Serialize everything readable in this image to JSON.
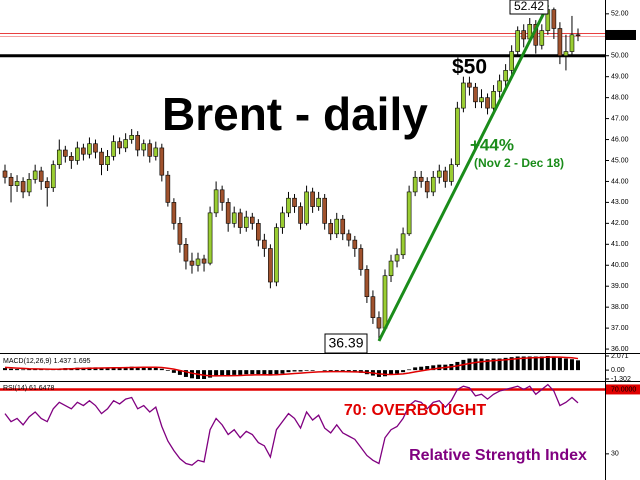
{
  "chart_data": {
    "type": "candlestick",
    "title": "Brent - daily",
    "color_up": "#9acd32",
    "color_down": "#a0522d",
    "open": [
      44.5,
      44.2,
      43.8,
      44.0,
      43.5,
      44.1,
      44.5,
      44.0,
      43.7,
      44.8,
      45.5,
      45.2,
      45.0,
      45.6,
      45.3,
      45.8,
      45.4,
      44.8,
      45.2,
      45.9,
      45.6,
      46.0,
      46.2,
      45.5,
      45.8,
      45.2,
      45.6,
      44.3,
      43.0,
      42.0,
      41.0,
      40.2,
      40.0,
      40.3,
      40.1,
      42.5,
      43.6,
      43.0,
      42.0,
      42.5,
      41.8,
      42.3,
      42.0,
      41.2,
      40.8,
      39.2,
      41.8,
      42.5,
      43.2,
      42.8,
      42.0,
      43.5,
      42.8,
      43.2,
      42.0,
      41.5,
      42.2,
      41.5,
      41.2,
      40.8,
      39.8,
      38.5,
      37.5,
      37.0,
      39.5,
      40.2,
      40.5,
      41.5,
      43.5,
      44.2,
      44.0,
      43.5,
      44.2,
      44.5,
      44.0,
      44.8,
      47.5,
      48.7,
      48.5,
      47.8,
      48.0,
      47.5,
      48.3,
      48.8,
      49.3,
      50.2,
      51.2,
      50.8,
      51.5,
      50.5,
      51.2,
      52.2,
      51.3,
      50.0,
      50.2,
      51.0
    ],
    "high": [
      44.8,
      44.4,
      44.3,
      44.2,
      44.4,
      44.8,
      44.7,
      44.2,
      45.0,
      46.0,
      45.7,
      45.4,
      45.9,
      45.8,
      46.1,
      46.0,
      45.6,
      45.5,
      46.2,
      46.1,
      46.3,
      46.5,
      46.4,
      46.0,
      46.0,
      45.9,
      45.8,
      44.5,
      43.2,
      42.3,
      41.3,
      40.6,
      40.6,
      40.5,
      42.8,
      44.0,
      43.8,
      43.2,
      42.8,
      42.7,
      42.6,
      42.5,
      42.2,
      41.5,
      41.0,
      42.0,
      42.8,
      43.5,
      43.4,
      43.0,
      43.8,
      43.7,
      43.5,
      43.4,
      42.2,
      42.5,
      42.4,
      41.7,
      41.4,
      41.0,
      40.0,
      38.8,
      37.8,
      39.8,
      40.5,
      40.8,
      41.8,
      43.8,
      44.5,
      44.5,
      44.2,
      44.5,
      44.8,
      44.7,
      45.1,
      47.8,
      49.0,
      49.0,
      48.7,
      48.4,
      48.2,
      48.6,
      49.1,
      49.6,
      50.5,
      51.4,
      51.5,
      51.8,
      51.7,
      51.5,
      52.42,
      52.3,
      51.6,
      51.0,
      51.9,
      51.3
    ],
    "low": [
      43.9,
      43.0,
      43.5,
      43.2,
      43.3,
      43.9,
      43.6,
      42.8,
      43.5,
      44.6,
      44.9,
      44.6,
      44.8,
      45.0,
      45.1,
      45.1,
      44.3,
      44.5,
      45.0,
      45.3,
      45.4,
      45.8,
      45.2,
      45.2,
      44.9,
      45.0,
      44.0,
      42.8,
      41.7,
      40.6,
      39.8,
      39.6,
      39.7,
      39.7,
      40.0,
      42.3,
      42.6,
      41.6,
      41.8,
      41.5,
      41.6,
      41.7,
      40.9,
      40.4,
      38.9,
      39.0,
      41.5,
      42.3,
      42.5,
      41.7,
      41.9,
      42.5,
      42.6,
      41.7,
      41.2,
      41.3,
      41.2,
      40.9,
      40.4,
      39.5,
      38.2,
      37.2,
      36.39,
      36.9,
      39.2,
      39.9,
      40.3,
      41.4,
      43.3,
      43.7,
      43.2,
      43.3,
      43.9,
      43.7,
      43.8,
      44.7,
      47.3,
      48.1,
      47.5,
      47.5,
      47.2,
      47.3,
      48.0,
      48.5,
      49.0,
      50.0,
      50.4,
      50.6,
      50.1,
      50.3,
      51.0,
      50.8,
      49.6,
      49.3,
      50.0,
      50.7
    ],
    "close": [
      44.2,
      43.8,
      44.0,
      43.5,
      44.1,
      44.5,
      44.0,
      43.7,
      44.8,
      45.5,
      45.2,
      45.0,
      45.6,
      45.3,
      45.8,
      45.4,
      44.8,
      45.2,
      45.9,
      45.6,
      46.0,
      46.2,
      45.5,
      45.8,
      45.2,
      45.6,
      44.3,
      43.0,
      42.0,
      41.0,
      40.2,
      40.0,
      40.3,
      40.1,
      42.5,
      43.6,
      43.0,
      42.0,
      42.5,
      41.8,
      42.3,
      42.0,
      41.2,
      40.8,
      39.2,
      41.8,
      42.5,
      43.2,
      42.8,
      42.0,
      43.5,
      42.8,
      43.2,
      42.0,
      41.5,
      42.2,
      41.5,
      41.2,
      40.8,
      39.8,
      38.5,
      37.5,
      37.0,
      39.5,
      40.2,
      40.5,
      41.5,
      43.5,
      44.2,
      44.0,
      43.5,
      44.2,
      44.5,
      44.0,
      44.8,
      47.5,
      48.7,
      48.5,
      47.8,
      48.0,
      47.5,
      48.3,
      48.8,
      49.3,
      50.2,
      51.2,
      50.8,
      51.5,
      50.5,
      51.2,
      52.2,
      51.3,
      50.0,
      50.2,
      51.0,
      50.99
    ],
    "ylim": [
      35.86,
      52.66
    ],
    "yticks": [
      {
        "value": 36,
        "label": "36.00"
      },
      {
        "value": 37,
        "label": "37.00"
      },
      {
        "value": 38,
        "label": "38.00"
      },
      {
        "value": 39,
        "label": "39.00"
      },
      {
        "value": 40,
        "label": "40.00"
      },
      {
        "value": 41,
        "label": "41.00"
      },
      {
        "value": 42,
        "label": "42.00"
      },
      {
        "value": 43,
        "label": "43.00"
      },
      {
        "value": 44,
        "label": "44.00"
      },
      {
        "value": 45,
        "label": "45.00"
      },
      {
        "value": 46,
        "label": "46.00"
      },
      {
        "value": 47,
        "label": "47.00"
      },
      {
        "value": 48,
        "label": "48.00"
      },
      {
        "value": 49,
        "label": "49.00"
      },
      {
        "value": 50,
        "label": "50.00"
      },
      {
        "value": 51,
        "label": "51.00"
      },
      {
        "value": 52,
        "label": "52.00"
      }
    ],
    "current_price": {
      "value": 50.99,
      "label": "50.99"
    },
    "level": {
      "value": 50,
      "label": "$50"
    },
    "high_label": 52.42,
    "low_label": 36.39,
    "change_label": "+44%",
    "period_label": "(Nov 2 - Dec 18)",
    "trend_color": "#1a8c1a",
    "macd": {
      "label": "MACD(12,26,9) 1.437 1.695",
      "color": "#000000",
      "signal_color": "#e00000",
      "values": [
        0.3,
        0.2,
        0.15,
        0.1,
        0.1,
        0.15,
        0.1,
        0.05,
        0.1,
        0.2,
        0.3,
        0.3,
        0.35,
        0.35,
        0.4,
        0.4,
        0.35,
        0.35,
        0.4,
        0.4,
        0.45,
        0.5,
        0.45,
        0.45,
        0.4,
        0.4,
        0.2,
        -0.1,
        -0.4,
        -0.7,
        -1.0,
        -1.2,
        -1.3,
        -1.3,
        -1.1,
        -0.9,
        -0.8,
        -0.8,
        -0.7,
        -0.7,
        -0.6,
        -0.6,
        -0.6,
        -0.6,
        -0.8,
        -0.6,
        -0.5,
        -0.3,
        -0.2,
        -0.2,
        -0.1,
        -0.1,
        0.0,
        -0.1,
        -0.2,
        -0.2,
        -0.2,
        -0.3,
        -0.3,
        -0.4,
        -0.6,
        -0.8,
        -1.0,
        -0.9,
        -0.7,
        -0.5,
        -0.3,
        0.1,
        0.4,
        0.5,
        0.6,
        0.7,
        0.8,
        0.8,
        0.9,
        1.2,
        1.5,
        1.7,
        1.7,
        1.7,
        1.6,
        1.7,
        1.7,
        1.8,
        1.9,
        2.0,
        2.0,
        2.0,
        2.0,
        2.0,
        2.07,
        2.0,
        1.8,
        1.7,
        1.6,
        1.437
      ],
      "signal": [
        0.4,
        0.35,
        0.3,
        0.25,
        0.2,
        0.18,
        0.16,
        0.14,
        0.13,
        0.14,
        0.17,
        0.2,
        0.23,
        0.25,
        0.28,
        0.3,
        0.32,
        0.33,
        0.34,
        0.35,
        0.37,
        0.39,
        0.41,
        0.42,
        0.42,
        0.42,
        0.38,
        0.28,
        0.15,
        -0.05,
        -0.25,
        -0.45,
        -0.6,
        -0.75,
        -0.82,
        -0.84,
        -0.83,
        -0.82,
        -0.8,
        -0.78,
        -0.74,
        -0.71,
        -0.69,
        -0.67,
        -0.69,
        -0.67,
        -0.63,
        -0.57,
        -0.5,
        -0.44,
        -0.37,
        -0.32,
        -0.26,
        -0.23,
        -0.22,
        -0.22,
        -0.22,
        -0.23,
        -0.25,
        -0.28,
        -0.34,
        -0.43,
        -0.55,
        -0.62,
        -0.64,
        -0.61,
        -0.55,
        -0.42,
        -0.26,
        -0.11,
        0.03,
        0.16,
        0.29,
        0.39,
        0.49,
        0.63,
        0.8,
        0.97,
        1.11,
        1.23,
        1.31,
        1.39,
        1.45,
        1.52,
        1.6,
        1.68,
        1.74,
        1.79,
        1.83,
        1.86,
        1.9,
        1.92,
        1.9,
        1.86,
        1.81,
        1.695
      ],
      "ylim": [
        -1.302,
        2.071
      ],
      "yticks": [
        2.071,
        {
          "value": 0,
          "label": "0.00"
        },
        -1.302
      ]
    },
    "rsi": {
      "label": "RSI(14) 61.6478",
      "color": "#800080",
      "level_color": "#e00000",
      "values": [
        55,
        50,
        52,
        48,
        53,
        56,
        52,
        50,
        58,
        62,
        60,
        58,
        62,
        60,
        63,
        60,
        55,
        58,
        63,
        61,
        64,
        65,
        58,
        60,
        56,
        59,
        47,
        38,
        32,
        27,
        24,
        23,
        26,
        25,
        45,
        52,
        48,
        42,
        45,
        40,
        44,
        42,
        37,
        35,
        28,
        45,
        50,
        55,
        52,
        46,
        56,
        51,
        54,
        46,
        43,
        48,
        43,
        41,
        39,
        34,
        29,
        26,
        24,
        40,
        45,
        47,
        52,
        60,
        63,
        62,
        58,
        62,
        63,
        59,
        63,
        70,
        72,
        71,
        66,
        67,
        64,
        67,
        69,
        70,
        71,
        72,
        70,
        72,
        67,
        70,
        73,
        69,
        60,
        62,
        65,
        61.6478
      ],
      "ylim": [
        15,
        74
      ],
      "yticks": [
        {
          "value": 70,
          "label": "70.0000"
        },
        30
      ],
      "level_label": "70: OVERBOUGHT",
      "title": "Relative Strength Index"
    }
  }
}
